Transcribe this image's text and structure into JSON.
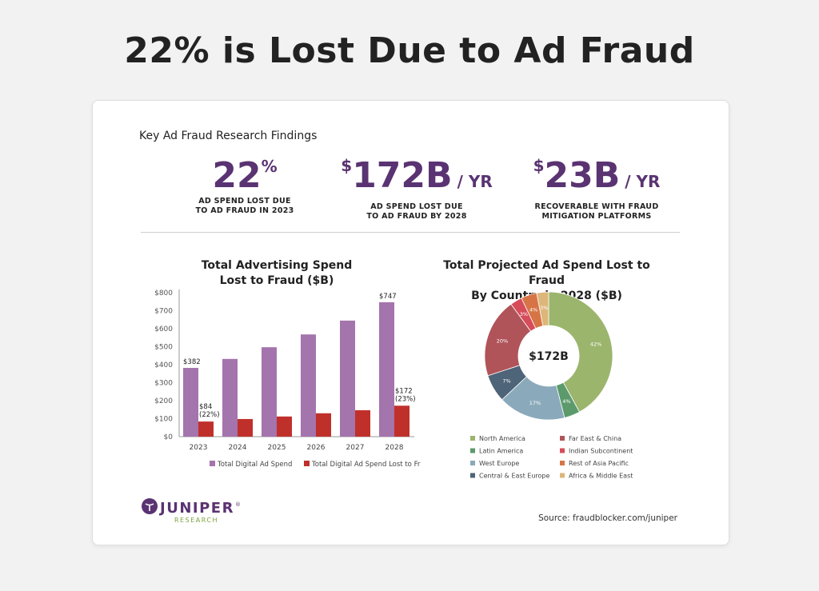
{
  "page_title": "22% is Lost Due to Ad Fraud",
  "findings_title": "Key Ad Fraud Research Findings",
  "stats": [
    {
      "prefix": "",
      "value": "22",
      "suffix": "%",
      "unit": "",
      "caption_line1": "AD SPEND LOST DUE",
      "caption_line2": "TO AD FRAUD IN 2023"
    },
    {
      "prefix": "$",
      "value": "172B",
      "suffix": "",
      "unit": "/ YR",
      "caption_line1": "AD SPEND LOST DUE",
      "caption_line2": "TO AD FRAUD BY 2028"
    },
    {
      "prefix": "$",
      "value": "23B",
      "suffix": "",
      "unit": "/ YR",
      "caption_line1": "RECOVERABLE WITH FRAUD",
      "caption_line2": "MITIGATION PLATFORMS"
    }
  ],
  "colors": {
    "purple_text": "#5a3372",
    "bar_total": "#a474ad",
    "bar_fraud": "#c0302a"
  },
  "chart_data": [
    {
      "type": "bar",
      "title_line1": "Total Advertising Spend",
      "title_line2": "Lost to Fraud ($B)",
      "categories": [
        "2023",
        "2024",
        "2025",
        "2026",
        "2027",
        "2028"
      ],
      "series": [
        {
          "name": "Total Digital Ad Spend",
          "values": [
            382,
            432,
            497,
            568,
            645,
            747
          ],
          "color": "#a474ad"
        },
        {
          "name": "Total Digital Ad Spend Lost to Fraud",
          "values": [
            84,
            98,
            112,
            130,
            147,
            172
          ],
          "color": "#c0302a"
        }
      ],
      "ylim": [
        0,
        800
      ],
      "yticks": [
        "$0",
        "$100",
        "$200",
        "$300",
        "$400",
        "$500",
        "$600",
        "$700",
        "$800"
      ],
      "annotations": [
        {
          "category": "2023",
          "series": 0,
          "text": "$382"
        },
        {
          "category": "2023",
          "series": 1,
          "text": "$84",
          "text2": "(22%)"
        },
        {
          "category": "2028",
          "series": 0,
          "text": "$747"
        },
        {
          "category": "2028",
          "series": 1,
          "text": "$172",
          "text2": "(23%)"
        }
      ],
      "legend_position": "bottom"
    },
    {
      "type": "pie",
      "title_line1": "Total Projected Ad Spend Lost to Fraud",
      "title_line2": "By Country in 2028 ($B)",
      "center_label": "$172B",
      "slices": [
        {
          "name": "North America",
          "value": 42,
          "label": "42%",
          "color": "#9bb56d"
        },
        {
          "name": "Latin America",
          "value": 4,
          "label": "4%",
          "color": "#5c9a6c"
        },
        {
          "name": "West Europe",
          "value": 17,
          "label": "17%",
          "color": "#8aaabb"
        },
        {
          "name": "Central & East Europe",
          "value": 7,
          "label": "7%",
          "color": "#4e6478"
        },
        {
          "name": "Far East & China",
          "value": 20,
          "label": "20%",
          "color": "#b0545a"
        },
        {
          "name": "Indian Subcontinent",
          "value": 3,
          "label": "3%",
          "color": "#d64c5a"
        },
        {
          "name": "Rest of Asia Pacific",
          "value": 4,
          "label": "4%",
          "color": "#d77446"
        },
        {
          "name": "Africa & Middle East",
          "value": 3,
          "label": "3%",
          "color": "#dcb67a"
        }
      ],
      "legend_left": [
        "North America",
        "Latin America",
        "West Europe",
        "Central & East Europe"
      ],
      "legend_right": [
        "Far East & China",
        "Indian Subcontinent",
        "Rest of Asia Pacific",
        "Africa & Middle East"
      ],
      "legend_position": "bottom"
    }
  ],
  "logo": {
    "name": "JUNIPER",
    "mark": "®",
    "sub": "RESEARCH"
  },
  "source": "Source: fraudblocker.com/juniper"
}
